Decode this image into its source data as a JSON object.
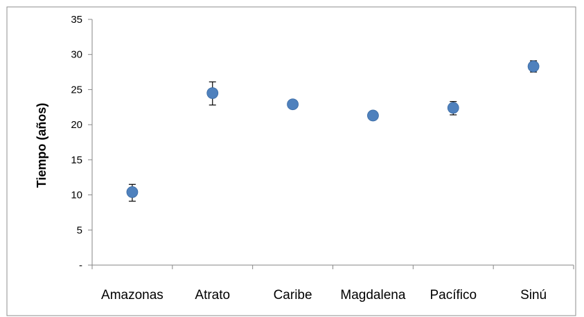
{
  "chart_data": {
    "type": "scatter",
    "title": "",
    "xlabel": "",
    "ylabel": "Tiempo (años)",
    "categories": [
      "Amazonas",
      "Atrato",
      "Caribe",
      "Magdalena",
      "Pacífico",
      "Sinú"
    ],
    "series": [
      {
        "values": [
          10.4,
          24.5,
          22.9,
          21.3,
          22.4,
          28.3
        ],
        "error_low": [
          9.1,
          22.8,
          null,
          null,
          21.4,
          27.5
        ],
        "error_high": [
          11.5,
          26.1,
          null,
          null,
          23.3,
          29.1
        ],
        "color": "#4f81bd"
      }
    ],
    "ylim": [
      0,
      35
    ],
    "yticks": [
      0,
      5,
      10,
      15,
      20,
      25,
      30,
      35
    ],
    "ytick_labels": [
      "-",
      "5",
      "10",
      "15",
      "20",
      "25",
      "30",
      "35"
    ],
    "grid": false,
    "legend": "none"
  }
}
